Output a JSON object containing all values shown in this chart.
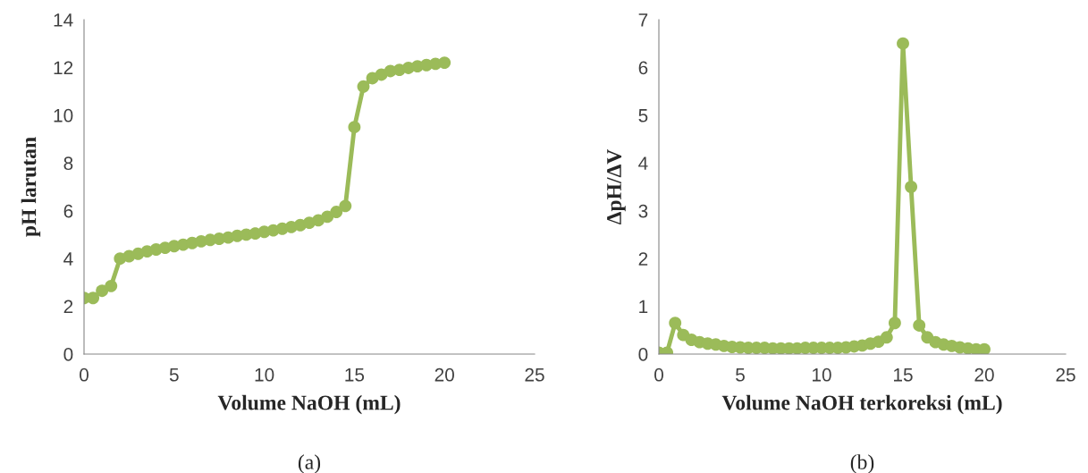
{
  "chart_data": [
    {
      "type": "line",
      "xlabel": "Volume NaOH (mL)",
      "ylabel": "pH larutan",
      "annotations": [
        "(a)"
      ],
      "xlim": [
        0,
        25
      ],
      "xticks": [
        0,
        5,
        10,
        15,
        20,
        25
      ],
      "ylim": [
        0,
        14
      ],
      "yticks": [
        0,
        2,
        4,
        6,
        8,
        10,
        12,
        14
      ],
      "grid": false,
      "marker": "circle",
      "line_style": "solid",
      "x": [
        0,
        0.5,
        1,
        1.5,
        2,
        2.5,
        3,
        3.5,
        4,
        4.5,
        5,
        5.5,
        6,
        6.5,
        7,
        7.5,
        8,
        8.5,
        9,
        9.5,
        10,
        10.5,
        11,
        11.5,
        12,
        12.5,
        13,
        13.5,
        14,
        14.5,
        15,
        15.5,
        16,
        16.5,
        17,
        17.5,
        18,
        18.5,
        19,
        19.5,
        20
      ],
      "series": [
        {
          "color": "#9bbb59",
          "values": [
            2.35,
            2.35,
            2.65,
            2.85,
            4.0,
            4.1,
            4.2,
            4.3,
            4.38,
            4.45,
            4.52,
            4.58,
            4.65,
            4.72,
            4.78,
            4.83,
            4.88,
            4.95,
            5.0,
            5.05,
            5.12,
            5.18,
            5.25,
            5.32,
            5.4,
            5.5,
            5.6,
            5.75,
            5.95,
            6.2,
            9.5,
            11.2,
            11.55,
            11.7,
            11.85,
            11.9,
            11.98,
            12.05,
            12.1,
            12.15,
            12.2
          ]
        }
      ]
    },
    {
      "type": "line",
      "xlabel": "Volume NaOH terkoreksi (mL)",
      "ylabel": "ΔpH/ΔV",
      "annotations": [
        "(b)"
      ],
      "xlim": [
        0,
        25
      ],
      "xticks": [
        0,
        5,
        10,
        15,
        20,
        25
      ],
      "ylim": [
        0,
        7
      ],
      "yticks": [
        0,
        1,
        2,
        3,
        4,
        5,
        6,
        7
      ],
      "grid": false,
      "marker": "circle",
      "line_style": "solid",
      "x": [
        0,
        0.5,
        1,
        1.5,
        2,
        2.5,
        3,
        3.5,
        4,
        4.5,
        5,
        5.5,
        6,
        6.5,
        7,
        7.5,
        8,
        8.5,
        9,
        9.5,
        10,
        10.5,
        11,
        11.5,
        12,
        12.5,
        13,
        13.5,
        14,
        14.5,
        15,
        15.5,
        16,
        16.5,
        17,
        17.5,
        18,
        18.5,
        19,
        19.5,
        20
      ],
      "series": [
        {
          "color": "#9bbb59",
          "values": [
            0.03,
            0.03,
            0.65,
            0.4,
            0.3,
            0.25,
            0.22,
            0.2,
            0.17,
            0.15,
            0.14,
            0.13,
            0.13,
            0.13,
            0.12,
            0.12,
            0.12,
            0.12,
            0.13,
            0.13,
            0.13,
            0.13,
            0.13,
            0.14,
            0.16,
            0.18,
            0.22,
            0.26,
            0.35,
            0.65,
            6.5,
            3.5,
            0.6,
            0.35,
            0.25,
            0.2,
            0.17,
            0.14,
            0.12,
            0.1,
            0.1
          ]
        }
      ]
    }
  ]
}
